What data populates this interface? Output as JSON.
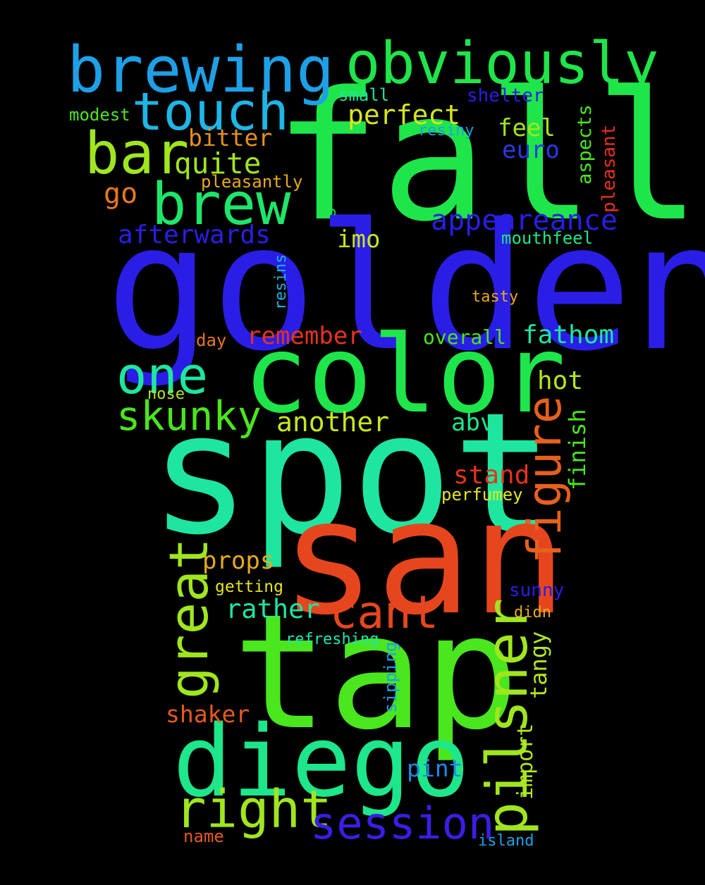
{
  "words": [
    {
      "text": "fall",
      "color": "#1ee64a"
    },
    {
      "text": "golden",
      "color": "#2a1ee6"
    },
    {
      "text": "spot",
      "color": "#1ee6a0"
    },
    {
      "text": "san",
      "color": "#e6461e"
    },
    {
      "text": "tap",
      "color": "#4ae61e"
    },
    {
      "text": "color",
      "color": "#1ee64a"
    },
    {
      "text": "diego",
      "color": "#1ee68a"
    },
    {
      "text": "brewing",
      "color": "#1ea0e6"
    },
    {
      "text": "obviously",
      "color": "#1ee64a"
    },
    {
      "text": "touch",
      "color": "#1eb6e6"
    },
    {
      "text": "bar",
      "color": "#a0e61e"
    },
    {
      "text": "brew",
      "color": "#1ee66a"
    },
    {
      "text": "one",
      "color": "#1ee6a0"
    },
    {
      "text": "great",
      "color": "#a0e61e"
    },
    {
      "text": "pilsner",
      "color": "#a0e61e"
    },
    {
      "text": "figure",
      "color": "#e6601e"
    },
    {
      "text": "cant",
      "color": "#e6461e"
    },
    {
      "text": "session",
      "color": "#3a1ee6"
    },
    {
      "text": "right",
      "color": "#a0e61e"
    },
    {
      "text": "skunky",
      "color": "#4ae61e"
    },
    {
      "text": "perfect",
      "color": "#d4e61e"
    },
    {
      "text": "quite",
      "color": "#a0e61e"
    },
    {
      "text": "bitter",
      "color": "#e6901e"
    },
    {
      "text": "feel",
      "color": "#a0e61e"
    },
    {
      "text": "euro",
      "color": "#2a3ae6"
    },
    {
      "text": "appeareance",
      "color": "#2a1ee6"
    },
    {
      "text": "afterwards",
      "color": "#2a1ee6"
    },
    {
      "text": "imo",
      "color": "#c8e61e"
    },
    {
      "text": "remember",
      "color": "#e6321e"
    },
    {
      "text": "fathom",
      "color": "#1ee6a0"
    },
    {
      "text": "another",
      "color": "#c8e61e"
    },
    {
      "text": "hot",
      "color": "#b4e61e"
    },
    {
      "text": "abv",
      "color": "#1ee68a"
    },
    {
      "text": "stand",
      "color": "#e6321e"
    },
    {
      "text": "props",
      "color": "#e6aa1e"
    },
    {
      "text": "rather",
      "color": "#1ee6a0"
    },
    {
      "text": "go",
      "color": "#e6781e"
    },
    {
      "text": "shaker",
      "color": "#e65a1e"
    },
    {
      "text": "pint",
      "color": "#1e8ae6"
    },
    {
      "text": "import",
      "color": "#b4e61e"
    },
    {
      "text": "tangy",
      "color": "#b4e61e"
    },
    {
      "text": "finish",
      "color": "#4ae61e"
    },
    {
      "text": "aspects",
      "color": "#4ae61e"
    },
    {
      "text": "pleasant",
      "color": "#e6321e"
    },
    {
      "text": "german",
      "color": "#1ee64a"
    },
    {
      "text": "resins",
      "color": "#1eb6e6"
    },
    {
      "text": "sipping",
      "color": "#1ea0e6"
    },
    {
      "text": "small",
      "color": "#1ee6a0"
    },
    {
      "text": "shelter",
      "color": "#2a1ee6"
    },
    {
      "text": "modest",
      "color": "#4ae61e"
    },
    {
      "text": "resiny",
      "color": "#1ea0e6"
    },
    {
      "text": "pleasantly",
      "color": "#e6aa1e"
    },
    {
      "text": "mouthfeel",
      "color": "#1ee68a"
    },
    {
      "text": "tasty",
      "color": "#e6aa1e"
    },
    {
      "text": "overall",
      "color": "#4ae61e"
    },
    {
      "text": "day",
      "color": "#e6781e"
    },
    {
      "text": "nose",
      "color": "#b4e61e"
    },
    {
      "text": "perfumey",
      "color": "#e6e61e"
    },
    {
      "text": "getting",
      "color": "#e6e61e"
    },
    {
      "text": "sunny",
      "color": "#2a1ee6"
    },
    {
      "text": "didn",
      "color": "#e6aa1e"
    },
    {
      "text": "refreshing",
      "color": "#1ee6b4"
    },
    {
      "text": "name",
      "color": "#e65a1e"
    },
    {
      "text": "island",
      "color": "#1ea0e6"
    }
  ]
}
